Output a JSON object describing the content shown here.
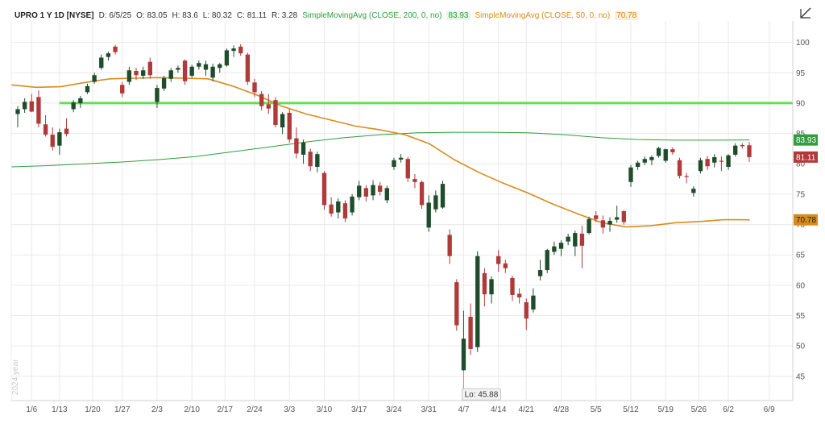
{
  "header": {
    "symbol": "UPRO 1 Y 1D [NYSE]",
    "date": "D: 6/5/25",
    "open": "O: 83.05",
    "high": "H: 83.6",
    "low": "L: 80.32",
    "close": "C: 81.11",
    "range": "R: 3.28",
    "study_200_label": "SimpleMovingAvg (CLOSE, 200, 0, no)",
    "study_200_value": "83.93",
    "study_50_label": "SimpleMovingAvg (CLOSE, 50, 0, no)",
    "study_50_value": "70.78"
  },
  "year_label": "2024 year",
  "colors": {
    "up": "#1f4d2c",
    "down": "#b03a3a",
    "sma200": "#2e9e3e",
    "sma50": "#d98b1a",
    "hline": "#5ee14a",
    "grid": "#e9e9e9"
  },
  "chart_data": {
    "type": "candlestick",
    "ylim": [
      41,
      103
    ],
    "y_ticks": [
      45,
      50,
      55,
      60,
      65,
      70,
      75,
      80,
      85,
      90,
      95,
      100
    ],
    "x_tick_labels": [
      "1/6",
      "1/13",
      "1/20",
      "1/27",
      "2/3",
      "2/10",
      "2/17",
      "2/24",
      "3/3",
      "3/10",
      "3/17",
      "3/24",
      "3/31",
      "4/7",
      "4/14",
      "4/21",
      "4/28",
      "5/5",
      "5/12",
      "5/19",
      "5/26",
      "6/2",
      "6/9"
    ],
    "horizontal_line": {
      "value": 90,
      "from": "1/13"
    },
    "price_badges": {
      "sma200": "83.93",
      "close": "81.11",
      "sma50": "70.78"
    },
    "low_annotation": {
      "text": "Lo: 45.88",
      "value": 45.88,
      "date": "4/7"
    },
    "candles": [
      {
        "d": "1/2",
        "o": 88.2,
        "h": 89.5,
        "l": 86.0,
        "c": 89.0
      },
      {
        "d": "1/3",
        "o": 89.0,
        "h": 90.8,
        "l": 88.4,
        "c": 90.2
      },
      {
        "d": "1/6",
        "o": 90.3,
        "h": 91.5,
        "l": 88.5,
        "c": 88.6
      },
      {
        "d": "1/7",
        "o": 91.0,
        "h": 92.1,
        "l": 86.0,
        "c": 86.6
      },
      {
        "d": "1/8",
        "o": 86.5,
        "h": 88.0,
        "l": 84.5,
        "c": 84.8
      },
      {
        "d": "1/10",
        "o": 84.8,
        "h": 86.0,
        "l": 82.2,
        "c": 82.8
      },
      {
        "d": "1/13",
        "o": 83.0,
        "h": 85.8,
        "l": 81.5,
        "c": 85.2
      },
      {
        "d": "1/14",
        "o": 85.8,
        "h": 87.5,
        "l": 84.5,
        "c": 84.9
      },
      {
        "d": "1/15",
        "o": 89.0,
        "h": 90.5,
        "l": 88.5,
        "c": 90.1
      },
      {
        "d": "1/16",
        "o": 90.0,
        "h": 91.2,
        "l": 89.2,
        "c": 90.8
      },
      {
        "d": "1/17",
        "o": 91.8,
        "h": 93.2,
        "l": 91.5,
        "c": 92.8
      },
      {
        "d": "1/21",
        "o": 93.5,
        "h": 95.0,
        "l": 93.2,
        "c": 94.6
      },
      {
        "d": "1/22",
        "o": 95.8,
        "h": 98.0,
        "l": 95.5,
        "c": 97.5
      },
      {
        "d": "1/23",
        "o": 97.6,
        "h": 98.5,
        "l": 97.0,
        "c": 98.2
      },
      {
        "d": "1/24",
        "o": 99.3,
        "h": 99.6,
        "l": 98.0,
        "c": 98.4
      },
      {
        "d": "1/27",
        "o": 93.0,
        "h": 93.5,
        "l": 91.0,
        "c": 91.6
      },
      {
        "d": "1/28",
        "o": 93.5,
        "h": 96.0,
        "l": 93.0,
        "c": 95.4
      },
      {
        "d": "1/29",
        "o": 95.3,
        "h": 95.8,
        "l": 93.8,
        "c": 94.6
      },
      {
        "d": "1/30",
        "o": 94.5,
        "h": 96.0,
        "l": 94.0,
        "c": 95.4
      },
      {
        "d": "1/31",
        "o": 96.8,
        "h": 97.5,
        "l": 94.0,
        "c": 94.6
      },
      {
        "d": "2/3",
        "o": 90.2,
        "h": 93.0,
        "l": 89.2,
        "c": 92.5
      },
      {
        "d": "2/4",
        "o": 92.4,
        "h": 94.5,
        "l": 92.0,
        "c": 94.1
      },
      {
        "d": "2/5",
        "o": 94.0,
        "h": 95.8,
        "l": 93.5,
        "c": 95.4
      },
      {
        "d": "2/6",
        "o": 95.5,
        "h": 96.2,
        "l": 95.0,
        "c": 95.8
      },
      {
        "d": "2/7",
        "o": 97.0,
        "h": 97.2,
        "l": 93.0,
        "c": 93.6
      },
      {
        "d": "2/10",
        "o": 94.5,
        "h": 96.3,
        "l": 94.2,
        "c": 96.0
      },
      {
        "d": "2/11",
        "o": 96.0,
        "h": 97.0,
        "l": 95.5,
        "c": 96.6
      },
      {
        "d": "2/12",
        "o": 95.5,
        "h": 97.0,
        "l": 94.5,
        "c": 96.4
      },
      {
        "d": "2/13",
        "o": 94.2,
        "h": 96.5,
        "l": 93.6,
        "c": 96.0
      },
      {
        "d": "2/14",
        "o": 95.8,
        "h": 96.6,
        "l": 95.0,
        "c": 96.4
      },
      {
        "d": "2/18",
        "o": 96.2,
        "h": 99.0,
        "l": 96.0,
        "c": 98.7
      },
      {
        "d": "2/19",
        "o": 98.6,
        "h": 99.5,
        "l": 97.6,
        "c": 99.0
      },
      {
        "d": "2/20",
        "o": 99.3,
        "h": 99.7,
        "l": 97.8,
        "c": 98.2
      },
      {
        "d": "2/21",
        "o": 98.0,
        "h": 98.3,
        "l": 93.0,
        "c": 93.5
      },
      {
        "d": "2/24",
        "o": 93.4,
        "h": 94.0,
        "l": 91.0,
        "c": 91.8
      },
      {
        "d": "2/25",
        "o": 91.5,
        "h": 92.0,
        "l": 88.8,
        "c": 89.5
      },
      {
        "d": "2/26",
        "o": 89.8,
        "h": 91.5,
        "l": 88.2,
        "c": 89.1
      },
      {
        "d": "2/27",
        "o": 90.5,
        "h": 91.0,
        "l": 86.0,
        "c": 86.4
      },
      {
        "d": "2/28",
        "o": 86.0,
        "h": 88.5,
        "l": 84.9,
        "c": 88.2
      },
      {
        "d": "3/3",
        "o": 88.4,
        "h": 89.0,
        "l": 83.5,
        "c": 84.0
      },
      {
        "d": "3/4",
        "o": 84.2,
        "h": 86.0,
        "l": 80.9,
        "c": 81.7
      },
      {
        "d": "3/5",
        "o": 81.5,
        "h": 84.0,
        "l": 80.0,
        "c": 83.5
      },
      {
        "d": "3/6",
        "o": 82.0,
        "h": 82.5,
        "l": 78.8,
        "c": 79.6
      },
      {
        "d": "3/7",
        "o": 79.5,
        "h": 82.0,
        "l": 78.6,
        "c": 81.6
      },
      {
        "d": "3/10",
        "o": 78.5,
        "h": 78.8,
        "l": 72.4,
        "c": 73.2
      },
      {
        "d": "3/11",
        "o": 73.3,
        "h": 74.5,
        "l": 71.3,
        "c": 71.8
      },
      {
        "d": "3/12",
        "o": 72.0,
        "h": 74.3,
        "l": 71.0,
        "c": 73.8
      },
      {
        "d": "3/13",
        "o": 73.5,
        "h": 74.0,
        "l": 70.4,
        "c": 71.0
      },
      {
        "d": "3/14",
        "o": 72.0,
        "h": 75.0,
        "l": 71.5,
        "c": 74.6
      },
      {
        "d": "3/17",
        "o": 74.5,
        "h": 77.2,
        "l": 74.0,
        "c": 76.4
      },
      {
        "d": "3/18",
        "o": 76.0,
        "h": 76.5,
        "l": 73.8,
        "c": 74.6
      },
      {
        "d": "3/19",
        "o": 74.8,
        "h": 77.3,
        "l": 74.0,
        "c": 76.5
      },
      {
        "d": "3/20",
        "o": 76.4,
        "h": 77.0,
        "l": 74.8,
        "c": 75.4
      },
      {
        "d": "3/21",
        "o": 74.0,
        "h": 76.4,
        "l": 73.5,
        "c": 76.0
      },
      {
        "d": "3/24",
        "o": 79.5,
        "h": 81.0,
        "l": 79.0,
        "c": 80.6
      },
      {
        "d": "3/25",
        "o": 80.7,
        "h": 81.6,
        "l": 80.2,
        "c": 81.0
      },
      {
        "d": "3/26",
        "o": 80.8,
        "h": 81.1,
        "l": 77.0,
        "c": 77.6
      },
      {
        "d": "3/27",
        "o": 77.5,
        "h": 78.3,
        "l": 76.0,
        "c": 77.0
      },
      {
        "d": "3/28",
        "o": 77.0,
        "h": 77.3,
        "l": 72.6,
        "c": 73.2
      },
      {
        "d": "3/31",
        "o": 69.5,
        "h": 74.8,
        "l": 68.8,
        "c": 73.6
      },
      {
        "d": "4/1",
        "o": 72.5,
        "h": 75.6,
        "l": 72.0,
        "c": 74.8
      },
      {
        "d": "4/2",
        "o": 72.8,
        "h": 77.2,
        "l": 72.6,
        "c": 76.7
      },
      {
        "d": "4/3",
        "o": 68.3,
        "h": 69.2,
        "l": 63.5,
        "c": 64.8
      },
      {
        "d": "4/4",
        "o": 60.5,
        "h": 61.0,
        "l": 52.5,
        "c": 53.4
      },
      {
        "d": "4/7",
        "o": 46.0,
        "h": 55.8,
        "l": 45.88,
        "c": 51.2
      },
      {
        "d": "4/8",
        "o": 54.8,
        "h": 57.0,
        "l": 48.5,
        "c": 49.5
      },
      {
        "d": "4/9",
        "o": 49.8,
        "h": 65.6,
        "l": 49.0,
        "c": 64.8
      },
      {
        "d": "4/10",
        "o": 62.0,
        "h": 62.8,
        "l": 56.5,
        "c": 58.5
      },
      {
        "d": "4/11",
        "o": 58.5,
        "h": 61.5,
        "l": 57.0,
        "c": 61.0
      },
      {
        "d": "4/14",
        "o": 64.8,
        "h": 65.8,
        "l": 62.2,
        "c": 63.5
      },
      {
        "d": "4/15",
        "o": 63.6,
        "h": 64.2,
        "l": 62.0,
        "c": 62.8
      },
      {
        "d": "4/16",
        "o": 61.2,
        "h": 61.6,
        "l": 57.4,
        "c": 58.4
      },
      {
        "d": "4/17",
        "o": 58.6,
        "h": 59.5,
        "l": 57.0,
        "c": 58.0
      },
      {
        "d": "4/21",
        "o": 57.2,
        "h": 57.8,
        "l": 52.6,
        "c": 54.5
      },
      {
        "d": "4/22",
        "o": 56.0,
        "h": 59.5,
        "l": 55.5,
        "c": 58.3
      },
      {
        "d": "4/23",
        "o": 61.5,
        "h": 64.2,
        "l": 60.8,
        "c": 62.5
      },
      {
        "d": "4/24",
        "o": 62.5,
        "h": 66.0,
        "l": 62.0,
        "c": 65.8
      },
      {
        "d": "4/25",
        "o": 65.5,
        "h": 67.2,
        "l": 65.0,
        "c": 66.4
      },
      {
        "d": "4/28",
        "o": 66.0,
        "h": 67.4,
        "l": 64.8,
        "c": 67.0
      },
      {
        "d": "4/29",
        "o": 67.2,
        "h": 68.5,
        "l": 66.6,
        "c": 68.0
      },
      {
        "d": "4/30",
        "o": 66.4,
        "h": 69.0,
        "l": 64.8,
        "c": 68.6
      },
      {
        "d": "5/1",
        "o": 68.5,
        "h": 69.8,
        "l": 62.8,
        "c": 66.5
      },
      {
        "d": "5/2",
        "o": 68.6,
        "h": 71.3,
        "l": 68.4,
        "c": 70.9
      },
      {
        "d": "5/5",
        "o": 71.5,
        "h": 72.2,
        "l": 70.4,
        "c": 70.9
      },
      {
        "d": "5/6",
        "o": 70.7,
        "h": 71.5,
        "l": 68.5,
        "c": 69.5
      },
      {
        "d": "5/7",
        "o": 70.0,
        "h": 71.2,
        "l": 68.8,
        "c": 70.6
      },
      {
        "d": "5/8",
        "o": 70.8,
        "h": 73.1,
        "l": 70.3,
        "c": 71.2
      },
      {
        "d": "5/9",
        "o": 72.2,
        "h": 72.4,
        "l": 70.0,
        "c": 70.4
      },
      {
        "d": "5/12",
        "o": 77.0,
        "h": 79.8,
        "l": 76.2,
        "c": 79.4
      },
      {
        "d": "5/13",
        "o": 79.5,
        "h": 80.5,
        "l": 79.0,
        "c": 80.2
      },
      {
        "d": "5/14",
        "o": 80.2,
        "h": 81.2,
        "l": 79.8,
        "c": 80.8
      },
      {
        "d": "5/15",
        "o": 80.6,
        "h": 81.4,
        "l": 79.8,
        "c": 81.1
      },
      {
        "d": "5/16",
        "o": 81.3,
        "h": 82.8,
        "l": 81.0,
        "c": 82.6
      },
      {
        "d": "5/19",
        "o": 80.5,
        "h": 82.5,
        "l": 80.2,
        "c": 82.4
      },
      {
        "d": "5/20",
        "o": 82.4,
        "h": 82.7,
        "l": 81.5,
        "c": 81.9
      },
      {
        "d": "5/21",
        "o": 80.6,
        "h": 81.0,
        "l": 77.6,
        "c": 78.0
      },
      {
        "d": "5/22",
        "o": 78.0,
        "h": 78.5,
        "l": 76.8,
        "c": 77.9
      },
      {
        "d": "5/23",
        "o": 75.2,
        "h": 76.3,
        "l": 74.6,
        "c": 75.9
      },
      {
        "d": "5/27",
        "o": 78.8,
        "h": 81.0,
        "l": 78.4,
        "c": 80.6
      },
      {
        "d": "5/28",
        "o": 80.8,
        "h": 81.3,
        "l": 79.0,
        "c": 79.6
      },
      {
        "d": "5/29",
        "o": 80.2,
        "h": 81.6,
        "l": 79.4,
        "c": 81.1
      },
      {
        "d": "5/30",
        "o": 80.5,
        "h": 81.2,
        "l": 78.8,
        "c": 80.4
      },
      {
        "d": "6/2",
        "o": 79.5,
        "h": 81.6,
        "l": 79.0,
        "c": 81.4
      },
      {
        "d": "6/3",
        "o": 81.5,
        "h": 83.4,
        "l": 81.2,
        "c": 83.0
      },
      {
        "d": "6/4",
        "o": 83.1,
        "h": 83.4,
        "l": 82.5,
        "c": 82.9
      },
      {
        "d": "6/5",
        "o": 83.05,
        "h": 83.6,
        "l": 80.32,
        "c": 81.11
      }
    ],
    "sma200": {
      "name": "SimpleMovingAvg (CLOSE, 200, 0, no)",
      "values": [
        79.5,
        79.7,
        80.0,
        80.3,
        80.7,
        81.2,
        82.0,
        82.8,
        83.6,
        84.3,
        84.8,
        85.1,
        85.2,
        85.2,
        85.1,
        84.8,
        84.3,
        84.0,
        83.9,
        83.9,
        83.93
      ]
    },
    "sma50": {
      "name": "SimpleMovingAvg (CLOSE, 50, 0, no)",
      "values": [
        93.0,
        92.6,
        92.7,
        93.4,
        94.0,
        94.1,
        94.2,
        94.1,
        94.0,
        92.8,
        91.3,
        89.5,
        88.2,
        87.2,
        86.2,
        85.6,
        84.8,
        83.3,
        80.7,
        78.6,
        76.8,
        75.2,
        73.4,
        71.8,
        70.3,
        69.6,
        69.8,
        70.3,
        70.5,
        70.8,
        70.78
      ]
    }
  }
}
